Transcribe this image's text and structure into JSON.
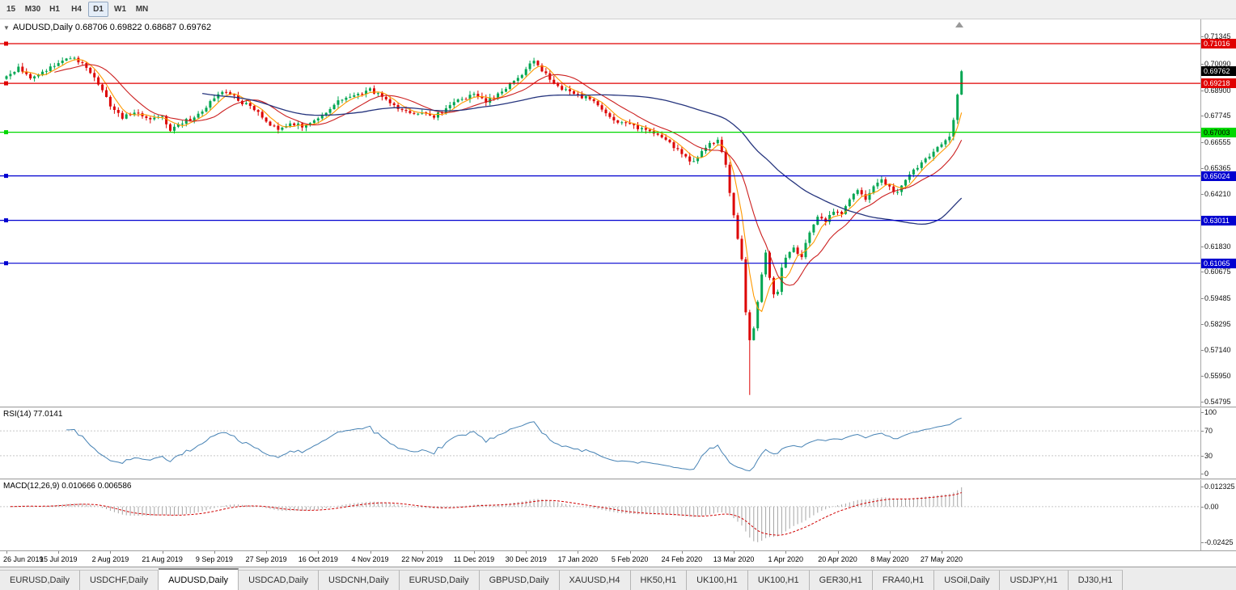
{
  "toolbar": {
    "timeframes": [
      {
        "label": "15",
        "active": false
      },
      {
        "label": "M30",
        "active": false
      },
      {
        "label": "H1",
        "active": false
      },
      {
        "label": "H4",
        "active": false
      },
      {
        "label": "D1",
        "active": true
      },
      {
        "label": "W1",
        "active": false
      },
      {
        "label": "MN",
        "active": false
      }
    ]
  },
  "main_chart": {
    "title": "AUDUSD,Daily 0.68706 0.69822 0.68687 0.69762",
    "current_price": "0.69762",
    "axis_labels": [
      "0.71345",
      "0.70090",
      "0.68900",
      "0.67745",
      "0.66555",
      "0.65365",
      "0.64210",
      "0.63020",
      "0.61830",
      "0.60675",
      "0.59485",
      "0.58295",
      "0.57140",
      "0.55950",
      "0.54795"
    ],
    "hlines": [
      {
        "price": 0.71016,
        "label": "0.71016",
        "color": "#e00000",
        "text_color": "#ffffff"
      },
      {
        "price": 0.69218,
        "label": "0.69218",
        "color": "#e00000",
        "text_color": "#ffffff"
      },
      {
        "price": 0.67003,
        "label": "0.67003",
        "color": "#00d800",
        "text_color": "#000000"
      },
      {
        "price": 0.65024,
        "label": "0.65024",
        "color": "#0000d0",
        "text_color": "#ffffff"
      },
      {
        "price": 0.63011,
        "label": "0.63011",
        "color": "#0000d0",
        "text_color": "#ffffff"
      },
      {
        "price": 0.61065,
        "label": "0.61065",
        "color": "#0000d0",
        "text_color": "#ffffff"
      }
    ]
  },
  "rsi": {
    "label": "RSI(14) 77.0141",
    "axis": [
      "100",
      "70",
      "30",
      "0"
    ],
    "levels": [
      70,
      30
    ]
  },
  "macd": {
    "label": "MACD(12,26,9) 0.010666 0.006586",
    "axis": {
      "top": "0.012325",
      "zero": "0.00",
      "bottom": "-0.02425"
    }
  },
  "date_axis": [
    "26 Jun 2019",
    "15 Jul 2019",
    "2 Aug 2019",
    "21 Aug 2019",
    "9 Sep 2019",
    "27 Sep 2019",
    "16 Oct 2019",
    "4 Nov 2019",
    "22 Nov 2019",
    "11 Dec 2019",
    "30 Dec 2019",
    "17 Jan 2020",
    "5 Feb 2020",
    "24 Feb 2020",
    "13 Mar 2020",
    "1 Apr 2020",
    "20 Apr 2020",
    "8 May 2020",
    "27 May 2020"
  ],
  "tabs": [
    {
      "label": "EURUSD,Daily",
      "active": false
    },
    {
      "label": "USDCHF,Daily",
      "active": false
    },
    {
      "label": "AUDUSD,Daily",
      "active": true
    },
    {
      "label": "USDCAD,Daily",
      "active": false
    },
    {
      "label": "USDCNH,Daily",
      "active": false
    },
    {
      "label": "EURUSD,Daily",
      "active": false
    },
    {
      "label": "GBPUSD,Daily",
      "active": false
    },
    {
      "label": "XAUUSD,H4",
      "active": false
    },
    {
      "label": "HK50,H1",
      "active": false
    },
    {
      "label": "UK100,H1",
      "active": false
    },
    {
      "label": "UK100,H1",
      "active": false
    },
    {
      "label": "GER30,H1",
      "active": false
    },
    {
      "label": "FRA40,H1",
      "active": false
    },
    {
      "label": "USOil,Daily",
      "active": false
    },
    {
      "label": "USDJPY,H1",
      "active": false
    },
    {
      "label": "DJ30,H1",
      "active": false
    }
  ],
  "chart_data": {
    "type": "candlestick",
    "symbol": "AUDUSD",
    "timeframe": "Daily",
    "num_candles": 240,
    "price_axis_range": [
      0.5457,
      0.7211
    ],
    "last_candle": {
      "open": 0.68706,
      "high": 0.69822,
      "low": 0.68687,
      "close": 0.69762
    },
    "crash": {
      "index": 186,
      "low": 0.551
    },
    "indicators": [
      {
        "name": "RSI",
        "period": 14,
        "value": 77.0141
      },
      {
        "name": "MACD",
        "fast": 12,
        "slow": 26,
        "signal": 9,
        "main": 0.010666,
        "signal_value": 0.006586
      },
      {
        "name": "MA-fast"
      },
      {
        "name": "MA-mid"
      },
      {
        "name": "MA-slow"
      }
    ],
    "price_anchors": [
      [
        0,
        0.695
      ],
      [
        3,
        0.699
      ],
      [
        6,
        0.6945
      ],
      [
        9,
        0.6975
      ],
      [
        13,
        0.7005
      ],
      [
        16,
        0.704
      ],
      [
        19,
        0.7015
      ],
      [
        22,
        0.695
      ],
      [
        26,
        0.6815
      ],
      [
        29,
        0.6768
      ],
      [
        33,
        0.679
      ],
      [
        36,
        0.6755
      ],
      [
        39,
        0.6775
      ],
      [
        41,
        0.6715
      ],
      [
        44,
        0.6745
      ],
      [
        48,
        0.6775
      ],
      [
        52,
        0.686
      ],
      [
        55,
        0.6885
      ],
      [
        58,
        0.6848
      ],
      [
        62,
        0.68
      ],
      [
        65,
        0.6755
      ],
      [
        68,
        0.6705
      ],
      [
        71,
        0.6745
      ],
      [
        74,
        0.6725
      ],
      [
        78,
        0.6765
      ],
      [
        82,
        0.683
      ],
      [
        86,
        0.6858
      ],
      [
        91,
        0.6892
      ],
      [
        94,
        0.6862
      ],
      [
        98,
        0.6808
      ],
      [
        101,
        0.6782
      ],
      [
        104,
        0.6795
      ],
      [
        107,
        0.6772
      ],
      [
        111,
        0.6818
      ],
      [
        114,
        0.6852
      ],
      [
        117,
        0.6868
      ],
      [
        120,
        0.684
      ],
      [
        124,
        0.6882
      ],
      [
        127,
        0.6932
      ],
      [
        130,
        0.6988
      ],
      [
        132,
        0.7022
      ],
      [
        135,
        0.6958
      ],
      [
        138,
        0.6905
      ],
      [
        141,
        0.6885
      ],
      [
        143,
        0.6868
      ],
      [
        146,
        0.685
      ],
      [
        149,
        0.6798
      ],
      [
        152,
        0.6758
      ],
      [
        156,
        0.673
      ],
      [
        159,
        0.6712
      ],
      [
        162,
        0.6692
      ],
      [
        165,
        0.667
      ],
      [
        168,
        0.6618
      ],
      [
        170,
        0.659
      ],
      [
        172,
        0.656
      ],
      [
        174,
        0.6622
      ],
      [
        176,
        0.6655
      ],
      [
        178,
        0.6658
      ],
      [
        180,
        0.6545
      ],
      [
        182,
        0.6328
      ],
      [
        184,
        0.6115
      ],
      [
        185,
        0.5885
      ],
      [
        186,
        0.576
      ],
      [
        187,
        0.5805
      ],
      [
        188,
        0.5925
      ],
      [
        189,
        0.6052
      ],
      [
        190,
        0.6148
      ],
      [
        191,
        0.6048
      ],
      [
        192,
        0.5962
      ],
      [
        193,
        0.5985
      ],
      [
        194,
        0.6082
      ],
      [
        195,
        0.6128
      ],
      [
        197,
        0.6178
      ],
      [
        199,
        0.6122
      ],
      [
        201,
        0.6252
      ],
      [
        203,
        0.6318
      ],
      [
        205,
        0.6292
      ],
      [
        207,
        0.6348
      ],
      [
        209,
        0.6322
      ],
      [
        211,
        0.6388
      ],
      [
        213,
        0.6438
      ],
      [
        215,
        0.6402
      ],
      [
        217,
        0.6448
      ],
      [
        219,
        0.6488
      ],
      [
        221,
        0.6452
      ],
      [
        223,
        0.6422
      ],
      [
        225,
        0.6478
      ],
      [
        227,
        0.6528
      ],
      [
        229,
        0.6558
      ],
      [
        231,
        0.6598
      ],
      [
        233,
        0.6638
      ],
      [
        235,
        0.6658
      ],
      [
        236,
        0.6672
      ],
      [
        237,
        0.6748
      ],
      [
        238,
        0.6872
      ],
      [
        239,
        0.6976
      ]
    ],
    "colors": {
      "up": "#00A651",
      "down": "#DD0404",
      "ma_fast": "#FF9900",
      "ma_mid": "#CC2020",
      "ma_slow": "#26357E",
      "rsi": "#4682B4",
      "macd_bars": "#A6A6A6",
      "macd_signal": "#D00000"
    }
  }
}
